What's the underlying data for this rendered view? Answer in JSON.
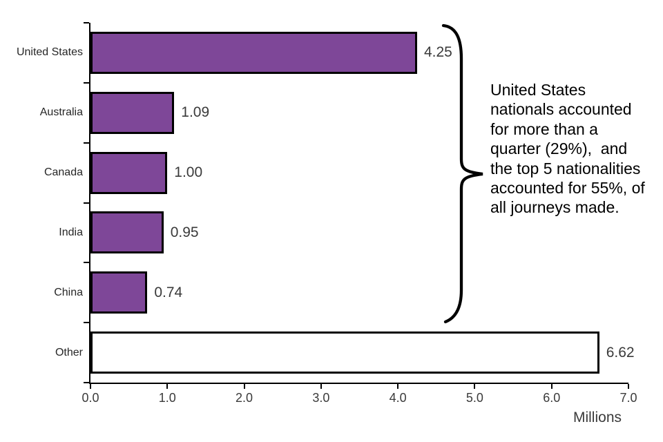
{
  "chart_data": {
    "type": "bar",
    "orientation": "horizontal",
    "categories": [
      "United States",
      "Australia",
      "Canada",
      "India",
      "China",
      "Other"
    ],
    "values": [
      4.25,
      1.09,
      1.0,
      0.95,
      0.74,
      6.62
    ],
    "value_labels": [
      "4.25",
      "1.09",
      "1.00",
      "0.95",
      "0.74",
      "6.62"
    ],
    "xlabel": "Millions",
    "xlim": [
      0,
      7
    ],
    "x_ticks": [
      "0.0",
      "1.0",
      "2.0",
      "3.0",
      "4.0",
      "5.0",
      "6.0",
      "7.0"
    ],
    "grid": "off",
    "legend": "none",
    "bar_colors": [
      "#7E4798",
      "#7E4798",
      "#7E4798",
      "#7E4798",
      "#7E4798",
      "#FFFFFF"
    ],
    "annotation": {
      "lines": [
        "United States",
        "nationals accounted",
        "for more than a",
        "quarter (29%),  and",
        "the top 5 nationalities",
        "accounted for 55%, of",
        "all journeys made."
      ]
    }
  },
  "colors": {
    "bar_fill": "#7E4798",
    "other_bar_fill": "#FFFFFF",
    "bar_border": "#000000",
    "axis": "#000000",
    "category_text": "#262626",
    "value_text": "#3a3a3a",
    "annotation_text": "#000000"
  }
}
